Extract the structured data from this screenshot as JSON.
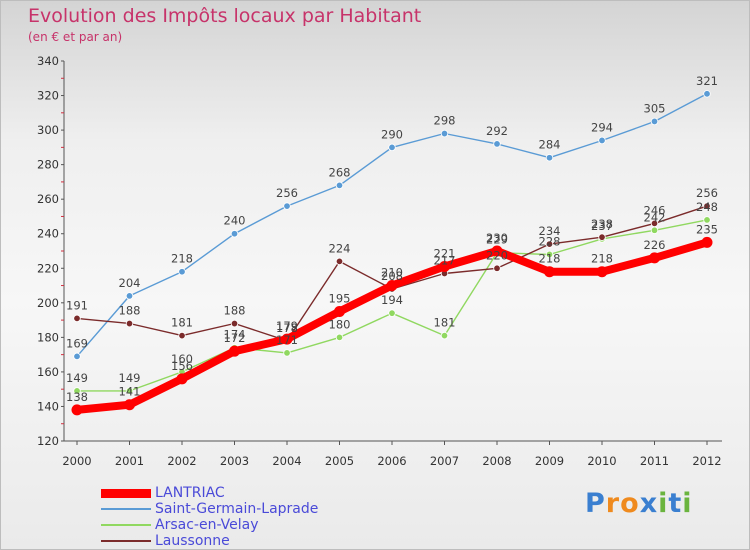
{
  "title": "Evolution des Impôts locaux par Habitant",
  "subtitle": "(en € et par an)",
  "logo": {
    "text": "Proxiti",
    "colors": [
      "#3a7fd0",
      "#ef8a1e",
      "#ef8a1e",
      "#3a7fd0",
      "#6ab43e",
      "#3a7fd0",
      "#6ab43e"
    ]
  },
  "chart_data": {
    "type": "line",
    "title": "Evolution des Impôts locaux par Habitant",
    "subtitle": "(en € et par an)",
    "xlabel": "",
    "ylabel": "",
    "ylim": [
      120,
      340
    ],
    "yticks": [
      120,
      140,
      160,
      180,
      200,
      220,
      240,
      260,
      280,
      300,
      320,
      340
    ],
    "grid": false,
    "legend_position": "bottom-left",
    "x": [
      "2000",
      "2001",
      "2002",
      "2003",
      "2004",
      "2005",
      "2006",
      "2007",
      "2008",
      "2009",
      "2010",
      "2011",
      "2012"
    ],
    "series": [
      {
        "name": "Saint-Germain-Laprade",
        "color": "#5a9bd5",
        "values": [
          169,
          204,
          218,
          240,
          256,
          268,
          290,
          298,
          292,
          284,
          294,
          305,
          321
        ]
      },
      {
        "name": "Arsac-en-Velay",
        "color": "#90d860",
        "values": [
          149,
          149,
          160,
          174,
          171,
          180,
          194,
          181,
          229,
          228,
          237,
          242,
          248
        ]
      },
      {
        "name": "Laussonne",
        "color": "#7b2b2b",
        "values": [
          191,
          188,
          181,
          188,
          178,
          224,
          208,
          217,
          220,
          234,
          238,
          246,
          256
        ]
      },
      {
        "name": "LANTRIAC",
        "color": "#ff0000",
        "values": [
          138,
          141,
          156,
          172,
          179,
          195,
          210,
          221,
          230,
          218,
          218,
          226,
          235
        ]
      }
    ]
  }
}
